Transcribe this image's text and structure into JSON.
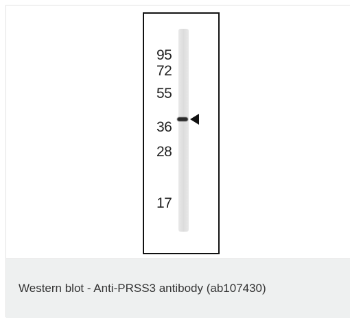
{
  "figure": {
    "markers": [
      "95",
      "72",
      "55",
      "36",
      "28",
      "17"
    ],
    "caption": "Western blot - Anti-PRSS3 antibody (ab107430)"
  }
}
